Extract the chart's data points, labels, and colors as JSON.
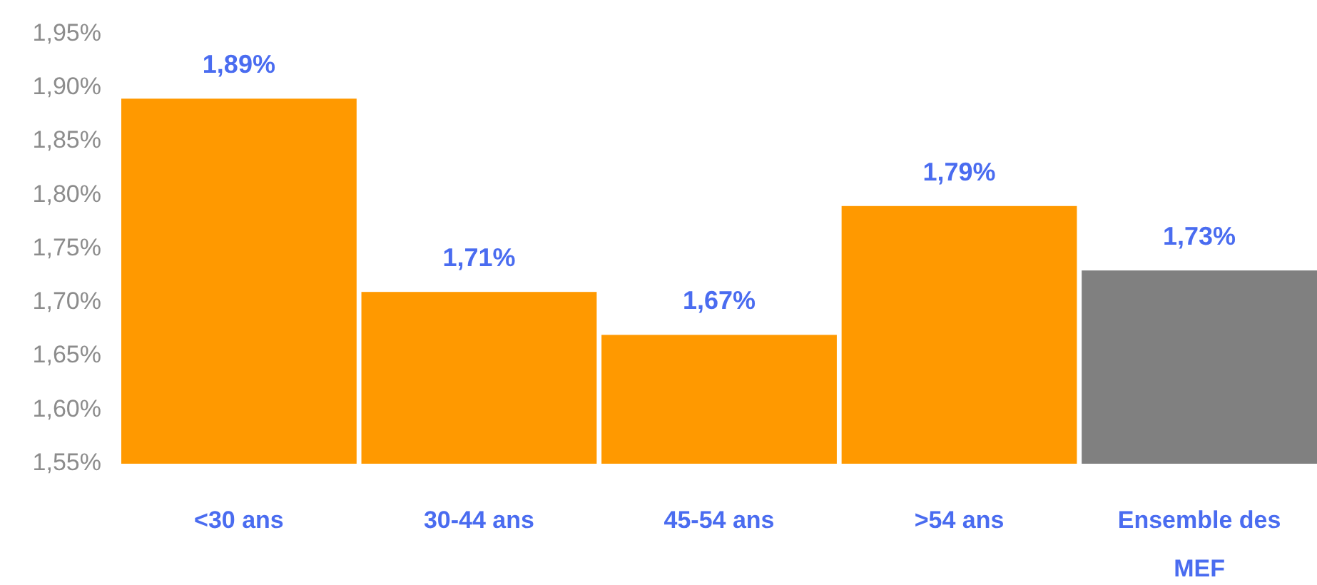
{
  "chart_data": {
    "type": "bar",
    "categories": [
      "<30 ans",
      "30-44 ans",
      "45-54 ans",
      ">54 ans",
      "Ensemble des MEF"
    ],
    "values": [
      1.89,
      1.71,
      1.67,
      1.79,
      1.73
    ],
    "colors": [
      "#ff9900",
      "#ff9900",
      "#ff9900",
      "#ff9900",
      "#808080"
    ],
    "value_labels": [
      "1,89%",
      "1,71%",
      "1,67%",
      "1,79%",
      "1,73%"
    ],
    "ylim": [
      1.55,
      1.95
    ],
    "yticks": [
      {
        "value": 1.55,
        "label": "1,55%"
      },
      {
        "value": 1.6,
        "label": "1,60%"
      },
      {
        "value": 1.65,
        "label": "1,65%"
      },
      {
        "value": 1.7,
        "label": "1,70%"
      },
      {
        "value": 1.75,
        "label": "1,75%"
      },
      {
        "value": 1.8,
        "label": "1,80%"
      },
      {
        "value": 1.85,
        "label": "1,85%"
      },
      {
        "value": 1.9,
        "label": "1,90%"
      },
      {
        "value": 1.95,
        "label": "1,95%"
      }
    ]
  }
}
